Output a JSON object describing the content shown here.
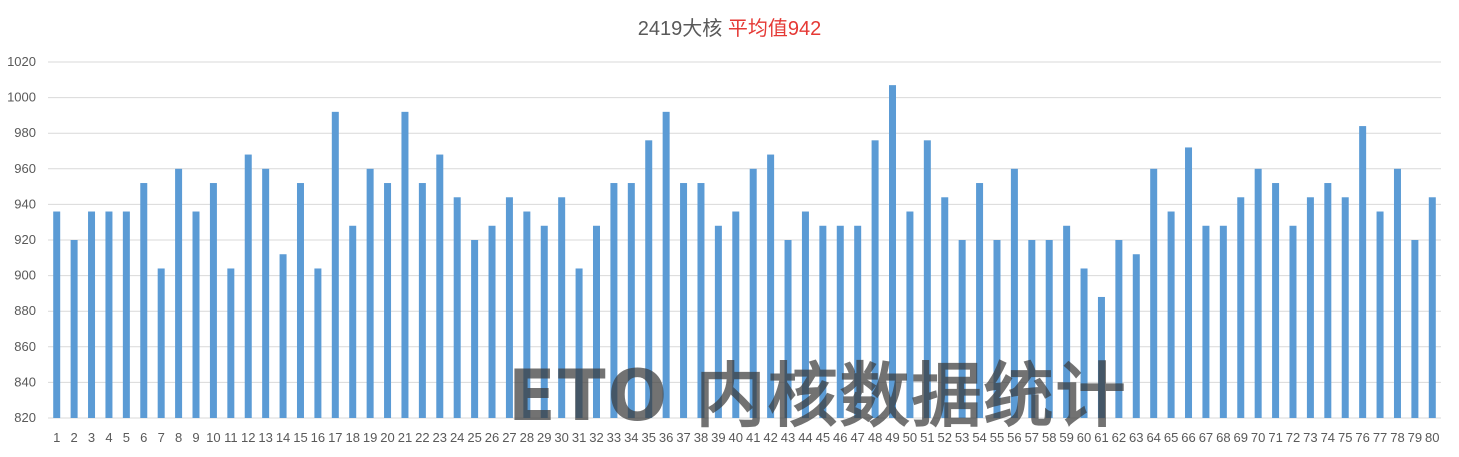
{
  "chart_data": {
    "type": "bar",
    "title": "2419大核",
    "title_highlight": "平均值942",
    "colors": {
      "bar": "#5B9BD5",
      "title": "#595959",
      "title_highlight": "#e53935",
      "grid": "#d9d9d9",
      "tick": "#595959"
    },
    "grid": true,
    "legend": "none",
    "xlabel": "",
    "ylabel": "",
    "ylim": [
      820,
      1020
    ],
    "y_ticks": [
      820,
      840,
      860,
      880,
      900,
      920,
      940,
      960,
      980,
      1000,
      1020
    ],
    "categories": [
      "1",
      "2",
      "3",
      "4",
      "5",
      "6",
      "7",
      "8",
      "9",
      "10",
      "11",
      "12",
      "13",
      "14",
      "15",
      "16",
      "17",
      "18",
      "19",
      "20",
      "21",
      "22",
      "23",
      "24",
      "25",
      "26",
      "27",
      "28",
      "29",
      "30",
      "31",
      "32",
      "33",
      "34",
      "35",
      "36",
      "37",
      "38",
      "39",
      "40",
      "41",
      "42",
      "43",
      "44",
      "45",
      "46",
      "47",
      "48",
      "49",
      "50",
      "51",
      "52",
      "53",
      "54",
      "55",
      "56",
      "57",
      "58",
      "59",
      "60",
      "61",
      "62",
      "63",
      "64",
      "65",
      "66",
      "67",
      "68",
      "69",
      "70",
      "71",
      "72",
      "73",
      "74",
      "75",
      "76",
      "77",
      "78",
      "79",
      "80"
    ],
    "values": [
      936,
      920,
      936,
      936,
      936,
      952,
      904,
      960,
      936,
      952,
      904,
      968,
      960,
      912,
      952,
      904,
      992,
      928,
      960,
      952,
      992,
      952,
      968,
      944,
      920,
      928,
      944,
      936,
      928,
      944,
      904,
      928,
      952,
      952,
      976,
      992,
      952,
      952,
      928,
      936,
      960,
      968,
      920,
      936,
      928,
      928,
      928,
      976,
      1007,
      936,
      976,
      944,
      920,
      952,
      920,
      960,
      920,
      920,
      928,
      904,
      888,
      920,
      912,
      960,
      936,
      972,
      928,
      928,
      944,
      960,
      952,
      928,
      944,
      952,
      944,
      984,
      936,
      960,
      920,
      944
    ]
  },
  "watermark": "ETO 内核数据统计"
}
